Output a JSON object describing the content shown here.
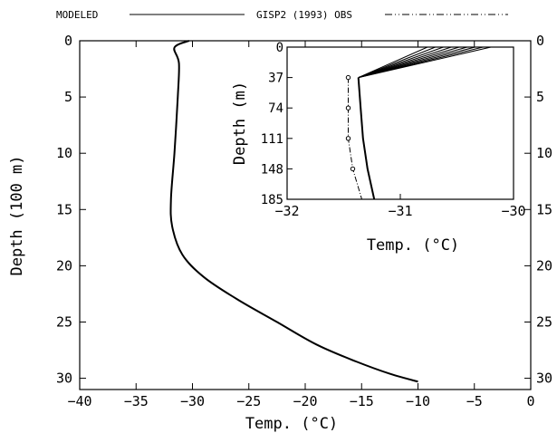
{
  "legend": {
    "modeled_label": "MODELED",
    "obs_label": "GISP2 (1993) OBS",
    "placement": "top"
  },
  "chart_data": [
    {
      "id": "main",
      "type": "line",
      "xlabel": "Temp. (°C)",
      "ylabel": "Depth (100 m)",
      "xlim": [
        -40,
        0
      ],
      "ylim": [
        31,
        0
      ],
      "y_inverted": true,
      "x_ticks": [
        -40,
        -35,
        -30,
        -25,
        -20,
        -15,
        -10,
        -5,
        0
      ],
      "x_tick_labels": [
        "−40",
        "−35",
        "−30",
        "−25",
        "−20",
        "−15",
        "−10",
        "−5",
        "0"
      ],
      "y_ticks": [
        0,
        5,
        10,
        15,
        20,
        25,
        30
      ],
      "y_tick_labels": [
        "0",
        "5",
        "10",
        "15",
        "20",
        "25",
        "30"
      ],
      "right_axis_tick_labels": true,
      "series": [
        {
          "name": "MODELED",
          "style": "solid",
          "x": [
            -30.3,
            -31.6,
            -31.2,
            -31.3,
            -31.6,
            -31.9,
            -31.8,
            -30.9,
            -29.0,
            -26.0,
            -22.5,
            -19.0,
            -15.5,
            -12.5,
            -10.0
          ],
          "y": [
            0.0,
            0.6,
            2.0,
            5.0,
            10.0,
            14.0,
            16.5,
            19.0,
            21.0,
            23.0,
            25.0,
            27.0,
            28.5,
            29.6,
            30.3
          ]
        }
      ]
    },
    {
      "id": "inset",
      "type": "line",
      "xlabel": "Temp. (°C)",
      "ylabel": "Depth (m)",
      "xlim": [
        -32,
        -30
      ],
      "ylim": [
        185,
        0
      ],
      "y_inverted": true,
      "x_ticks": [
        -32,
        -31,
        -30
      ],
      "x_tick_labels": [
        "−32",
        "−31",
        "−30"
      ],
      "y_ticks": [
        0,
        37,
        74,
        111,
        148,
        185
      ],
      "y_tick_labels": [
        "0",
        "37",
        "74",
        "111",
        "148",
        "185"
      ],
      "series": [
        {
          "name": "MODELED",
          "style": "solid",
          "fan_top_x": [
            -30.2,
            -30.27,
            -30.34,
            -30.41,
            -30.48,
            -30.55,
            -30.62,
            -30.69,
            -30.76
          ],
          "x": [
            -31.37,
            -31.35,
            -31.33,
            -31.29,
            -31.23
          ],
          "y": [
            37,
            74,
            111,
            148,
            185
          ]
        },
        {
          "name": "GISP2 (1993) OBS",
          "style": "dash-dot",
          "x": [
            -31.46,
            -31.46,
            -31.46,
            -31.42,
            -31.34
          ],
          "y": [
            37,
            74,
            111,
            148,
            185
          ]
        }
      ]
    }
  ]
}
